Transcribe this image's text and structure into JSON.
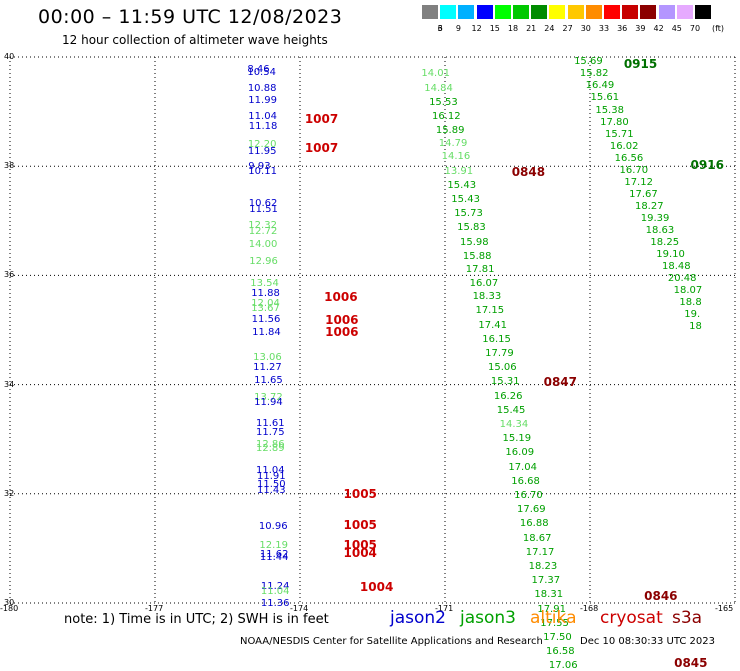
{
  "title": "00:00 – 11:59 UTC 12/08/2023",
  "subtitle": "12 hour collection of altimeter wave heights",
  "legend": {
    "labels": [
      "3",
      "6",
      "9",
      "12",
      "15",
      "18",
      "21",
      "24",
      "27",
      "30",
      "33",
      "36",
      "39",
      "42",
      "45",
      "70"
    ],
    "unit": "(ft)",
    "colors": [
      "#808080",
      "#00ffff",
      "#00b0ff",
      "#0000ff",
      "#00ff00",
      "#00c800",
      "#008c00",
      "#ffff00",
      "#ffc800",
      "#ff8c00",
      "#ff0000",
      "#c80000",
      "#8c0000",
      "#b496ff",
      "#e6aaff",
      "#000000"
    ]
  },
  "axes": {
    "x_ticks": [
      "-180",
      "-177",
      "-174",
      "-171",
      "-168",
      "-165"
    ],
    "y_ticks": [
      "40",
      "38",
      "36",
      "34",
      "32",
      "30"
    ],
    "lon_range": [
      -180,
      -165
    ],
    "lat_range": [
      30,
      40
    ]
  },
  "note": "note: 1) Time is in UTC; 2) SWH is in feet",
  "satellites": [
    {
      "name": "jason2",
      "color": "#0000cc"
    },
    {
      "name": "jason3",
      "color": "#00a000"
    },
    {
      "name": "altika",
      "color": "#ff8c00"
    },
    {
      "name": "cryosat",
      "color": "#cc0000"
    },
    {
      "name": "s3a",
      "color": "#8b0000"
    }
  ],
  "credit": "NOAA/NESDIS Center for Satellite Applications and Research",
  "stamp": "Dec 10 08:30:33 UTC 2023",
  "tracks": [
    {
      "id": "track-1",
      "values": [
        {
          "v": "8.46",
          "c": "#0000cc",
          "lat": 39.76,
          "lon": -174.8
        },
        {
          "v": "10.54",
          "c": "#0000cc",
          "lat": 39.7,
          "lon": -174.8
        },
        {
          "v": "10.88",
          "c": "#0000cc",
          "lat": 39.42,
          "lon": -174.79
        },
        {
          "v": "11.99",
          "c": "#0000cc",
          "lat": 39.2,
          "lon": -174.78
        },
        {
          "v": "11.04",
          "c": "#0000cc",
          "lat": 38.9,
          "lon": -174.78
        },
        {
          "v": "11.18",
          "c": "#0000cc",
          "lat": 38.72,
          "lon": -174.77
        },
        {
          "v": "12.20",
          "c": "#66dd66",
          "lat": 38.38,
          "lon": -174.79
        },
        {
          "v": "11.95",
          "c": "#0000cc",
          "lat": 38.26,
          "lon": -174.79
        },
        {
          "v": "9.93",
          "c": "#0000cc",
          "lat": 37.98,
          "lon": -174.78
        },
        {
          "v": "10.11",
          "c": "#0000cc",
          "lat": 37.9,
          "lon": -174.78
        },
        {
          "v": "10.62",
          "c": "#0000cc",
          "lat": 37.3,
          "lon": -174.77
        },
        {
          "v": "11.51",
          "c": "#0000cc",
          "lat": 37.2,
          "lon": -174.76
        },
        {
          "v": "12.32",
          "c": "#66dd66",
          "lat": 36.9,
          "lon": -174.78
        },
        {
          "v": "12.72",
          "c": "#66dd66",
          "lat": 36.8,
          "lon": -174.77
        },
        {
          "v": "14.00",
          "c": "#66dd66",
          "lat": 36.56,
          "lon": -174.77
        },
        {
          "v": "12.96",
          "c": "#66dd66",
          "lat": 36.24,
          "lon": -174.76
        },
        {
          "v": "13.54",
          "c": "#66dd66",
          "lat": 35.85,
          "lon": -174.74
        },
        {
          "v": "11.88",
          "c": "#0000cc",
          "lat": 35.66,
          "lon": -174.72
        },
        {
          "v": "12.04",
          "c": "#66dd66",
          "lat": 35.48,
          "lon": -174.72
        },
        {
          "v": "13.67",
          "c": "#66dd66",
          "lat": 35.38,
          "lon": -174.72
        },
        {
          "v": "11.56",
          "c": "#0000cc",
          "lat": 35.18,
          "lon": -174.71
        },
        {
          "v": "11.84",
          "c": "#0000cc",
          "lat": 34.94,
          "lon": -174.7
        },
        {
          "v": "13.06",
          "c": "#66dd66",
          "lat": 34.48,
          "lon": -174.68
        },
        {
          "v": "11.27",
          "c": "#0000cc",
          "lat": 34.3,
          "lon": -174.68
        },
        {
          "v": "11.65",
          "c": "#0000cc",
          "lat": 34.06,
          "lon": -174.66
        },
        {
          "v": "13.72",
          "c": "#66dd66",
          "lat": 33.76,
          "lon": -174.66
        },
        {
          "v": "11.94",
          "c": "#0000cc",
          "lat": 33.66,
          "lon": -174.66
        },
        {
          "v": "11.61",
          "c": "#0000cc",
          "lat": 33.28,
          "lon": -174.62
        },
        {
          "v": "11.75",
          "c": "#0000cc",
          "lat": 33.12,
          "lon": -174.62
        },
        {
          "v": "12.86",
          "c": "#66dd66",
          "lat": 32.9,
          "lon": -174.62
        },
        {
          "v": "12.89",
          "c": "#66dd66",
          "lat": 32.82,
          "lon": -174.62
        },
        {
          "v": "11.04",
          "c": "#0000cc",
          "lat": 32.42,
          "lon": -174.62
        },
        {
          "v": "11.91",
          "c": "#0000cc",
          "lat": 32.3,
          "lon": -174.6
        },
        {
          "v": "11.50",
          "c": "#0000cc",
          "lat": 32.16,
          "lon": -174.6
        },
        {
          "v": "11.43",
          "c": "#0000cc",
          "lat": 32.06,
          "lon": -174.6
        },
        {
          "v": "10.96",
          "c": "#0000cc",
          "lat": 31.4,
          "lon": -174.56
        },
        {
          "v": "12.19",
          "c": "#66dd66",
          "lat": 31.04,
          "lon": -174.55
        },
        {
          "v": "11.62",
          "c": "#0000cc",
          "lat": 30.88,
          "lon": -174.54
        },
        {
          "v": "11.44",
          "c": "#0000cc",
          "lat": 30.82,
          "lon": -174.54
        },
        {
          "v": "11.24",
          "c": "#0000cc",
          "lat": 30.3,
          "lon": -174.52
        },
        {
          "v": "11.04",
          "c": "#66dd66",
          "lat": 30.2,
          "lon": -174.52
        },
        {
          "v": "11.36",
          "c": "#0000cc",
          "lat": 29.98,
          "lon": -174.52
        }
      ]
    },
    {
      "id": "track-2",
      "values": [
        {
          "v": "14.01",
          "c": "#66dd66",
          "lat": 39.68,
          "lon": -171.2
        },
        {
          "v": "14.84",
          "c": "#66dd66",
          "lat": 39.42,
          "lon": -171.14
        },
        {
          "v": "15.53",
          "c": "#00a000",
          "lat": 39.16,
          "lon": -171.04
        },
        {
          "v": "16.12",
          "c": "#00a000",
          "lat": 38.9,
          "lon": -170.98
        },
        {
          "v": "15.89",
          "c": "#00a000",
          "lat": 38.64,
          "lon": -170.9
        },
        {
          "v": "14.79",
          "c": "#66dd66",
          "lat": 38.4,
          "lon": -170.84
        },
        {
          "v": "14.16",
          "c": "#66dd66",
          "lat": 38.16,
          "lon": -170.78
        },
        {
          "v": "13.91",
          "c": "#66dd66",
          "lat": 37.9,
          "lon": -170.72
        },
        {
          "v": "15.43",
          "c": "#00a000",
          "lat": 37.64,
          "lon": -170.66
        },
        {
          "v": "15.43",
          "c": "#00a000",
          "lat": 37.38,
          "lon": -170.58
        },
        {
          "v": "15.73",
          "c": "#00a000",
          "lat": 37.12,
          "lon": -170.52
        },
        {
          "v": "15.83",
          "c": "#00a000",
          "lat": 36.86,
          "lon": -170.46
        },
        {
          "v": "15.98",
          "c": "#00a000",
          "lat": 36.6,
          "lon": -170.4
        },
        {
          "v": "15.88",
          "c": "#00a000",
          "lat": 36.34,
          "lon": -170.34
        },
        {
          "v": "17.81",
          "c": "#00a000",
          "lat": 36.1,
          "lon": -170.28
        },
        {
          "v": "16.07",
          "c": "#00a000",
          "lat": 35.84,
          "lon": -170.2
        },
        {
          "v": "18.33",
          "c": "#00a000",
          "lat": 35.6,
          "lon": -170.14
        },
        {
          "v": "17.15",
          "c": "#00a000",
          "lat": 35.34,
          "lon": -170.08
        },
        {
          "v": "17.41",
          "c": "#00a000",
          "lat": 35.08,
          "lon": -170.02
        },
        {
          "v": "16.15",
          "c": "#00a000",
          "lat": 34.82,
          "lon": -169.94
        },
        {
          "v": "17.79",
          "c": "#00a000",
          "lat": 34.56,
          "lon": -169.88
        },
        {
          "v": "15.06",
          "c": "#00a000",
          "lat": 34.3,
          "lon": -169.82
        },
        {
          "v": "15.31",
          "c": "#00a000",
          "lat": 34.04,
          "lon": -169.76
        },
        {
          "v": "16.26",
          "c": "#00a000",
          "lat": 33.78,
          "lon": -169.7
        },
        {
          "v": "15.45",
          "c": "#00a000",
          "lat": 33.52,
          "lon": -169.64
        },
        {
          "v": "14.34",
          "c": "#66dd66",
          "lat": 33.26,
          "lon": -169.58
        },
        {
          "v": "15.19",
          "c": "#00a000",
          "lat": 33.0,
          "lon": -169.52
        },
        {
          "v": "16.09",
          "c": "#00a000",
          "lat": 32.74,
          "lon": -169.46
        },
        {
          "v": "17.04",
          "c": "#00a000",
          "lat": 32.48,
          "lon": -169.4
        },
        {
          "v": "16.68",
          "c": "#00a000",
          "lat": 32.22,
          "lon": -169.34
        },
        {
          "v": "16.70",
          "c": "#00a000",
          "lat": 31.96,
          "lon": -169.28
        },
        {
          "v": "17.69",
          "c": "#00a000",
          "lat": 31.7,
          "lon": -169.22
        },
        {
          "v": "16.88",
          "c": "#00a000",
          "lat": 31.44,
          "lon": -169.16
        },
        {
          "v": "18.67",
          "c": "#00a000",
          "lat": 31.18,
          "lon": -169.1
        },
        {
          "v": "17.17",
          "c": "#00a000",
          "lat": 30.92,
          "lon": -169.04
        },
        {
          "v": "18.23",
          "c": "#00a000",
          "lat": 30.66,
          "lon": -168.98
        },
        {
          "v": "17.37",
          "c": "#00a000",
          "lat": 30.4,
          "lon": -168.92
        },
        {
          "v": "18.31",
          "c": "#00a000",
          "lat": 30.14,
          "lon": -168.86
        },
        {
          "v": "17.91",
          "c": "#00a000",
          "lat": 29.88,
          "lon": -168.8
        },
        {
          "v": "17.55",
          "c": "#00a000",
          "lat": 29.62,
          "lon": -168.74
        },
        {
          "v": "17.50",
          "c": "#00a000",
          "lat": 29.36,
          "lon": -168.68
        },
        {
          "v": "16.58",
          "c": "#00a000",
          "lat": 29.1,
          "lon": -168.62
        },
        {
          "v": "17.06",
          "c": "#00a000",
          "lat": 28.84,
          "lon": -168.56
        }
      ]
    },
    {
      "id": "track-3",
      "values": [
        {
          "v": "15.69",
          "c": "#00a000",
          "lat": 39.9,
          "lon": -168.04
        },
        {
          "v": "15.82",
          "c": "#00a000",
          "lat": 39.68,
          "lon": -167.92
        },
        {
          "v": "16.49",
          "c": "#00a000",
          "lat": 39.46,
          "lon": -167.8
        },
        {
          "v": "15.61",
          "c": "#00a000",
          "lat": 39.24,
          "lon": -167.7
        },
        {
          "v": "15.38",
          "c": "#00a000",
          "lat": 39.02,
          "lon": -167.6
        },
        {
          "v": "17.80",
          "c": "#00a000",
          "lat": 38.8,
          "lon": -167.5
        },
        {
          "v": "15.71",
          "c": "#00a000",
          "lat": 38.58,
          "lon": -167.4
        },
        {
          "v": "16.02",
          "c": "#00a000",
          "lat": 38.36,
          "lon": -167.3
        },
        {
          "v": "16.56",
          "c": "#00a000",
          "lat": 38.14,
          "lon": -167.2
        },
        {
          "v": "16.70",
          "c": "#00a000",
          "lat": 37.92,
          "lon": -167.1
        },
        {
          "v": "17.12",
          "c": "#00a000",
          "lat": 37.7,
          "lon": -167.0
        },
        {
          "v": "17.67",
          "c": "#00a000",
          "lat": 37.48,
          "lon": -166.9
        },
        {
          "v": "18.27",
          "c": "#00a000",
          "lat": 37.26,
          "lon": -166.78
        },
        {
          "v": "19.39",
          "c": "#00a000",
          "lat": 37.04,
          "lon": -166.66
        },
        {
          "v": "18.63",
          "c": "#00a000",
          "lat": 36.82,
          "lon": -166.56
        },
        {
          "v": "18.25",
          "c": "#00a000",
          "lat": 36.6,
          "lon": -166.46
        },
        {
          "v": "19.10",
          "c": "#00a000",
          "lat": 36.38,
          "lon": -166.34
        },
        {
          "v": "18.48",
          "c": "#00a000",
          "lat": 36.16,
          "lon": -166.22
        },
        {
          "v": "20.48",
          "c": "#00a000",
          "lat": 35.94,
          "lon": -166.1
        },
        {
          "v": "18.07",
          "c": "#00a000",
          "lat": 35.72,
          "lon": -165.98
        },
        {
          "v": "18.8",
          "c": "#00a000",
          "lat": 35.5,
          "lon": -165.86
        },
        {
          "v": "19.",
          "c": "#00a000",
          "lat": 35.28,
          "lon": -165.76
        },
        {
          "v": "18",
          "c": "#00a000",
          "lat": 35.06,
          "lon": -165.66
        }
      ]
    }
  ],
  "passes": [
    {
      "id": "pass-0915",
      "label": "0915",
      "c": "#007000",
      "lat": 39.88,
      "lon": -167.3
    },
    {
      "id": "pass-0916",
      "label": "0916",
      "c": "#007000",
      "lat": 38.02,
      "lon": -165.92
    },
    {
      "id": "pass-0848",
      "label": "0848",
      "c": "#8b0000",
      "lat": 37.9,
      "lon": -169.62
    },
    {
      "id": "pass-1007a",
      "label": "1007",
      "c": "#cc0000",
      "lat": 38.86,
      "lon": -173.9
    },
    {
      "id": "pass-1007b",
      "label": "1007",
      "c": "#cc0000",
      "lat": 38.34,
      "lon": -173.9
    },
    {
      "id": "pass-1006a",
      "label": "1006",
      "c": "#cc0000",
      "lat": 35.6,
      "lon": -173.5
    },
    {
      "id": "pass-1006b",
      "label": "1006",
      "c": "#cc0000",
      "lat": 35.18,
      "lon": -173.48
    },
    {
      "id": "pass-1006c",
      "label": "1006",
      "c": "#cc0000",
      "lat": 34.96,
      "lon": -173.48
    },
    {
      "id": "pass-0847",
      "label": "0847",
      "c": "#8b0000",
      "lat": 34.04,
      "lon": -168.96
    },
    {
      "id": "pass-1005a",
      "label": "1005",
      "c": "#cc0000",
      "lat": 32.0,
      "lon": -173.1
    },
    {
      "id": "pass-1005b",
      "label": "1005",
      "c": "#cc0000",
      "lat": 31.42,
      "lon": -173.1
    },
    {
      "id": "pass-1005c",
      "label": "1005",
      "c": "#cc0000",
      "lat": 31.06,
      "lon": -173.1
    },
    {
      "id": "pass-1004a",
      "label": "1004",
      "c": "#cc0000",
      "lat": 30.92,
      "lon": -173.1
    },
    {
      "id": "pass-1004b",
      "label": "1004",
      "c": "#cc0000",
      "lat": 30.3,
      "lon": -172.76
    },
    {
      "id": "pass-0846",
      "label": "0846",
      "c": "#8b0000",
      "lat": 30.12,
      "lon": -166.88
    },
    {
      "id": "pass-0845",
      "label": "0845",
      "c": "#8b0000",
      "lat": 28.9,
      "lon": -166.26
    }
  ]
}
